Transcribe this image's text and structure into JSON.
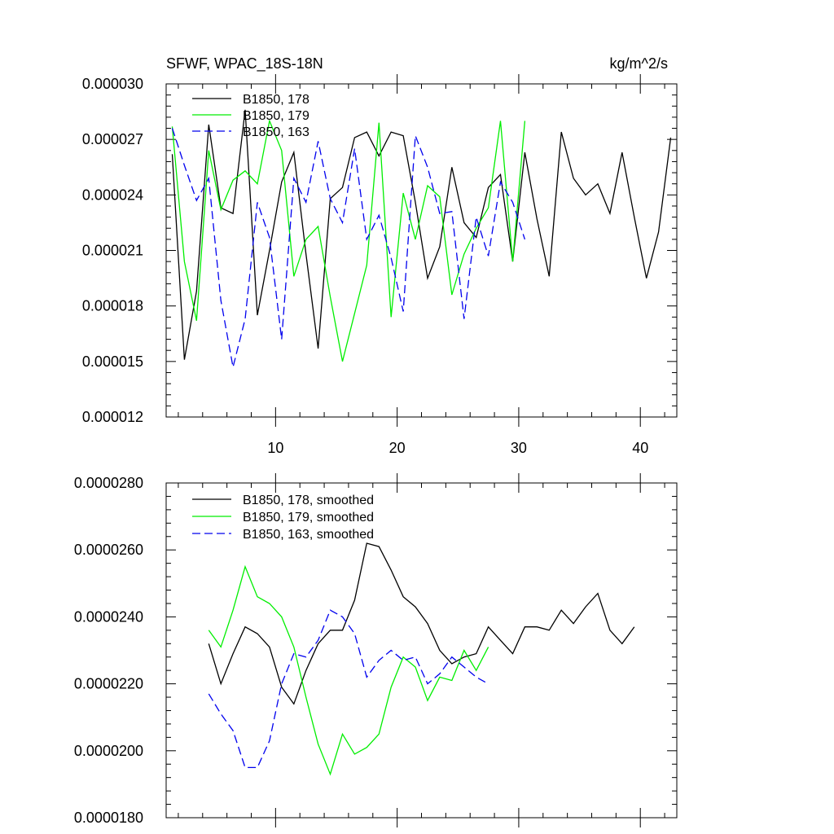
{
  "chart_data": [
    {
      "type": "line",
      "title": "SFWF, WPAC_18S-18N",
      "units_label": "kg/m^2/s",
      "xlim": [
        1,
        43
      ],
      "ylim": [
        1.2e-05,
        3e-05
      ],
      "x_major_ticks": [
        10,
        20,
        30,
        40
      ],
      "x_tick_labels": [
        "10",
        "20",
        "30",
        "40"
      ],
      "y_major_ticks": [
        1.2e-05,
        1.5e-05,
        1.8e-05,
        2.1e-05,
        2.4e-05,
        2.7e-05,
        3e-05
      ],
      "y_tick_labels": [
        "0.000012",
        "0.000015",
        "0.000018",
        "0.000021",
        "0.000024",
        "0.000027",
        "0.000030"
      ],
      "legend_position": "top-left",
      "series": [
        {
          "name": "B1850, 178",
          "color": "#000000",
          "dash": "solid",
          "x": [
            1.5,
            2.5,
            3.5,
            4.5,
            5.5,
            6.5,
            7.5,
            8.5,
            9.5,
            10.5,
            11.5,
            12.5,
            13.5,
            14.5,
            15.5,
            16.5,
            17.5,
            18.5,
            19.5,
            20.5,
            21.5,
            22.5,
            23.5,
            24.5,
            25.5,
            26.5,
            27.5,
            28.5,
            29.5,
            30.5,
            31.5,
            32.5,
            33.5,
            34.5,
            35.5,
            36.5,
            37.5,
            38.5,
            39.5,
            40.5,
            41.5,
            42.5
          ],
          "values": [
            2.62e-05,
            1.51e-05,
            1.88e-05,
            2.78e-05,
            2.33e-05,
            2.3e-05,
            2.86e-05,
            1.75e-05,
            2.1e-05,
            2.47e-05,
            2.63e-05,
            2.08e-05,
            1.57e-05,
            2.38e-05,
            2.44e-05,
            2.71e-05,
            2.74e-05,
            2.61e-05,
            2.74e-05,
            2.72e-05,
            2.36e-05,
            1.95e-05,
            2.12e-05,
            2.55e-05,
            2.25e-05,
            2.17e-05,
            2.44e-05,
            2.51e-05,
            2.04e-05,
            2.63e-05,
            2.27e-05,
            1.96e-05,
            2.74e-05,
            2.49e-05,
            2.4e-05,
            2.46e-05,
            2.3e-05,
            2.63e-05,
            2.28e-05,
            1.95e-05,
            2.2e-05,
            2.71e-05
          ]
        },
        {
          "name": "B1850, 179",
          "color": "#00ee00",
          "dash": "solid",
          "x": [
            1.5,
            2.5,
            3.5,
            4.5,
            5.5,
            6.5,
            7.5,
            8.5,
            9.5,
            10.5,
            11.5,
            12.5,
            13.5,
            14.5,
            15.5,
            16.5,
            17.5,
            18.5,
            19.5,
            20.5,
            21.5,
            22.5,
            23.5,
            24.5,
            25.5,
            26.5,
            27.5,
            28.5,
            29.5,
            30.5
          ],
          "values": [
            2.77e-05,
            2.04e-05,
            1.72e-05,
            2.64e-05,
            2.32e-05,
            2.48e-05,
            2.53e-05,
            2.46e-05,
            2.8e-05,
            2.64e-05,
            1.96e-05,
            2.16e-05,
            2.23e-05,
            1.85e-05,
            1.5e-05,
            1.76e-05,
            2.02e-05,
            2.79e-05,
            1.74e-05,
            2.41e-05,
            2.16e-05,
            2.45e-05,
            2.39e-05,
            1.86e-05,
            2.08e-05,
            2.22e-05,
            2.33e-05,
            2.8e-05,
            2.04e-05,
            2.8e-05
          ]
        },
        {
          "name": "B1850, 163",
          "color": "#0000ee",
          "dash": "dashed",
          "x": [
            1.5,
            2.5,
            3.5,
            4.5,
            5.5,
            6.5,
            7.5,
            8.5,
            9.5,
            10.5,
            11.5,
            12.5,
            13.5,
            14.5,
            15.5,
            16.5,
            17.5,
            18.5,
            19.5,
            20.5,
            21.5,
            22.5,
            23.5,
            24.5,
            25.5,
            26.5,
            27.5,
            28.5,
            29.5,
            30.5
          ],
          "values": [
            2.76e-05,
            2.56e-05,
            2.37e-05,
            2.49e-05,
            1.83e-05,
            1.47e-05,
            1.73e-05,
            2.36e-05,
            2.17e-05,
            1.62e-05,
            2.49e-05,
            2.36e-05,
            2.69e-05,
            2.38e-05,
            2.25e-05,
            2.65e-05,
            2.16e-05,
            2.29e-05,
            2.06e-05,
            1.77e-05,
            2.72e-05,
            2.55e-05,
            2.3e-05,
            2.31e-05,
            1.73e-05,
            2.28e-05,
            2.07e-05,
            2.47e-05,
            2.36e-05,
            2.16e-05
          ]
        }
      ]
    },
    {
      "type": "line",
      "xlim": [
        1,
        43
      ],
      "ylim": [
        1.8e-05,
        2.8e-05
      ],
      "x_major_ticks": [
        10,
        20,
        30,
        40
      ],
      "y_major_ticks": [
        1.8e-05,
        2e-05,
        2.2e-05,
        2.4e-05,
        2.6e-05,
        2.8e-05
      ],
      "y_tick_labels": [
        "0.0000180",
        "0.0000200",
        "0.0000220",
        "0.0000240",
        "0.0000260",
        "0.0000280"
      ],
      "legend_position": "top-left",
      "series": [
        {
          "name": "B1850, 178, smoothed",
          "color": "#000000",
          "dash": "solid",
          "x": [
            4.5,
            5.5,
            6.5,
            7.5,
            8.5,
            9.5,
            10.5,
            11.5,
            12.5,
            13.5,
            14.5,
            15.5,
            16.5,
            17.5,
            18.5,
            19.5,
            20.5,
            21.5,
            22.5,
            23.5,
            24.5,
            25.5,
            26.5,
            27.5,
            28.5,
            29.5,
            30.5,
            31.5,
            32.5,
            33.5,
            34.5,
            35.5,
            36.5,
            37.5,
            38.5,
            39.5
          ],
          "values": [
            2.32e-05,
            2.2e-05,
            2.29e-05,
            2.37e-05,
            2.35e-05,
            2.31e-05,
            2.19e-05,
            2.14e-05,
            2.24e-05,
            2.32e-05,
            2.36e-05,
            2.36e-05,
            2.45e-05,
            2.62e-05,
            2.61e-05,
            2.54e-05,
            2.46e-05,
            2.43e-05,
            2.38e-05,
            2.3e-05,
            2.26e-05,
            2.28e-05,
            2.29e-05,
            2.37e-05,
            2.33e-05,
            2.29e-05,
            2.37e-05,
            2.37e-05,
            2.36e-05,
            2.42e-05,
            2.38e-05,
            2.43e-05,
            2.47e-05,
            2.36e-05,
            2.32e-05,
            2.37e-05
          ]
        },
        {
          "name": "B1850, 179, smoothed",
          "color": "#00ee00",
          "dash": "solid",
          "x": [
            4.5,
            5.5,
            6.5,
            7.5,
            8.5,
            9.5,
            10.5,
            11.5,
            12.5,
            13.5,
            14.5,
            15.5,
            16.5,
            17.5,
            18.5,
            19.5,
            20.5,
            21.5,
            22.5,
            23.5,
            24.5,
            25.5,
            26.5,
            27.5
          ],
          "values": [
            2.36e-05,
            2.31e-05,
            2.42e-05,
            2.55e-05,
            2.46e-05,
            2.44e-05,
            2.4e-05,
            2.31e-05,
            2.16e-05,
            2.02e-05,
            1.93e-05,
            2.05e-05,
            1.99e-05,
            2.01e-05,
            2.05e-05,
            2.19e-05,
            2.28e-05,
            2.25e-05,
            2.15e-05,
            2.22e-05,
            2.21e-05,
            2.3e-05,
            2.24e-05,
            2.31e-05
          ]
        },
        {
          "name": "B1850, 163, smoothed",
          "color": "#0000ee",
          "dash": "dashed",
          "x": [
            4.5,
            5.5,
            6.5,
            7.5,
            8.5,
            9.5,
            10.5,
            11.5,
            12.5,
            13.5,
            14.5,
            15.5,
            16.5,
            17.5,
            18.5,
            19.5,
            20.5,
            21.5,
            22.5,
            23.5,
            24.5,
            25.5,
            26.5,
            27.5
          ],
          "values": [
            2.17e-05,
            2.11e-05,
            2.06e-05,
            1.95e-05,
            1.95e-05,
            2.03e-05,
            2.2e-05,
            2.29e-05,
            2.28e-05,
            2.33e-05,
            2.42e-05,
            2.4e-05,
            2.35e-05,
            2.22e-05,
            2.27e-05,
            2.3e-05,
            2.27e-05,
            2.28e-05,
            2.2e-05,
            2.23e-05,
            2.28e-05,
            2.25e-05,
            2.22e-05,
            2.2e-05
          ]
        }
      ]
    }
  ]
}
